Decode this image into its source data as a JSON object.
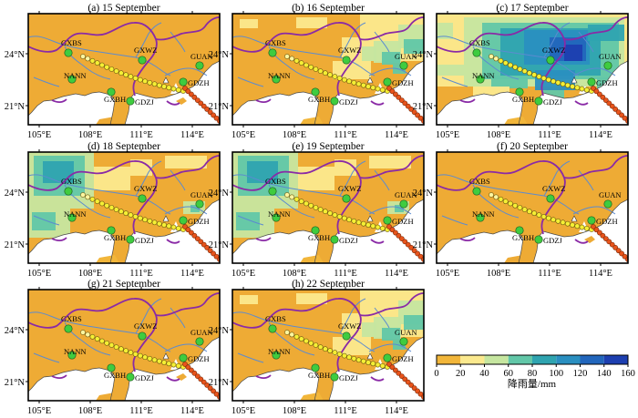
{
  "panels": [
    {
      "title": "(a) 15 September",
      "rain": 0
    },
    {
      "title": "(b) 16 September",
      "rain": 1
    },
    {
      "title": "(c) 17 September",
      "rain": 3
    },
    {
      "title": "(d) 18 September",
      "rain": 2
    },
    {
      "title": "(e) 19 September",
      "rain": 2
    },
    {
      "title": "(f) 20 September",
      "rain": 0
    },
    {
      "title": "(g) 21 September",
      "rain": 0
    },
    {
      "title": "(h) 22 September",
      "rain": 1
    }
  ],
  "axes": {
    "lon_labels": [
      "105°E",
      "108°E",
      "111°E",
      "114°E"
    ],
    "lat_labels": [
      "24°N",
      "21°N"
    ]
  },
  "stations": [
    {
      "name": "GXBS"
    },
    {
      "name": "GXWZ"
    },
    {
      "name": "GUAN"
    },
    {
      "name": "NANN"
    },
    {
      "name": "GDZH"
    },
    {
      "name": "GXBH"
    },
    {
      "name": "GDZJ"
    }
  ],
  "colorbar": {
    "ticks": [
      "0",
      "20",
      "40",
      "60",
      "80",
      "100",
      "120",
      "140",
      "160"
    ],
    "label": "降雨量/mm",
    "colors": [
      "#f2b63a",
      "#fbe98e",
      "#c6e6a0",
      "#62c7a8",
      "#2fa4b0",
      "#2a8fc0",
      "#2266bc",
      "#1d3fb0"
    ]
  },
  "colors": {
    "land": "#eeab35",
    "sea": "#ffffff",
    "province_border": "#8a2aa6",
    "river": "#5b8bd0",
    "station": "#3fcc3f",
    "track_red": "#e8541c",
    "track_yellow": "#f5ef35"
  }
}
